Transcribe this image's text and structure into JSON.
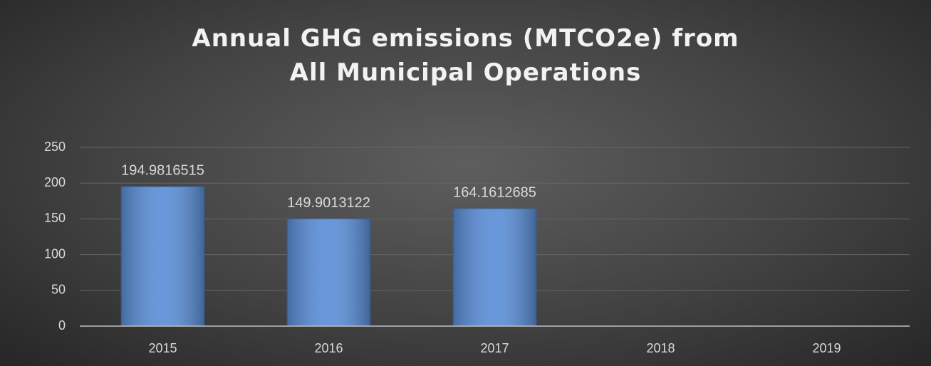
{
  "chart_data": {
    "type": "bar",
    "title": "Annual GHG emissions (MTCO2e) from All Municipal Operations",
    "categories": [
      "2015",
      "2016",
      "2017",
      "2018",
      "2019"
    ],
    "values": [
      194.9816515,
      149.9013122,
      164.1612685,
      null,
      null
    ],
    "color": "#5b8fd8",
    "ylim": [
      0,
      250
    ],
    "yticks": [
      0,
      50,
      100,
      150,
      200,
      250
    ],
    "grid": true
  }
}
